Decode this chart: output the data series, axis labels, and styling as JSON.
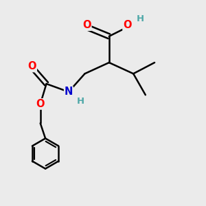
{
  "bg_color": "#ebebeb",
  "bond_color": "#000000",
  "bond_width": 1.8,
  "atom_colors": {
    "O": "#ff0000",
    "N": "#0000cd",
    "C": "#000000",
    "H_O": "#4fa8a8",
    "H_N": "#4fa8a8"
  },
  "font_size": 8.5,
  "fig_size": [
    3.0,
    3.0
  ],
  "dpi": 100,
  "xlim": [
    0,
    10
  ],
  "ylim": [
    0,
    10
  ]
}
